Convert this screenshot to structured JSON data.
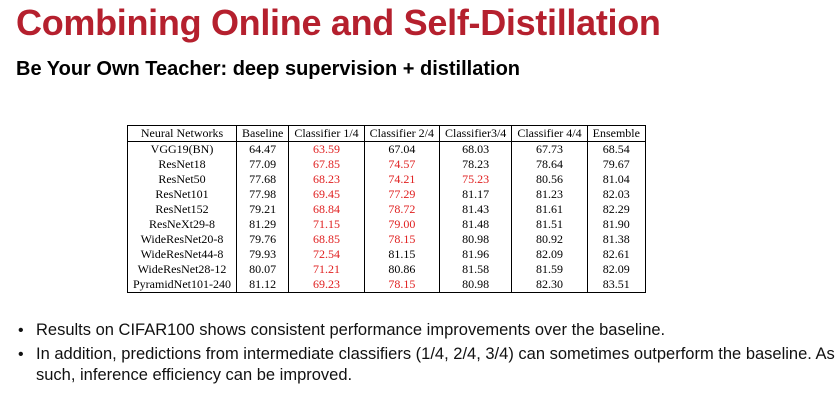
{
  "title": "Combining Online and Self-Distillation",
  "subtitle": "Be Your Own Teacher: deep supervision + distillation",
  "table": {
    "headers": [
      "Neural Networks",
      "Baseline",
      "Classifier 1/4",
      "Classifier 2/4",
      "Classifier3/4",
      "Classifier 4/4",
      "Ensemble"
    ],
    "rows": [
      {
        "name": "VGG19(BN)",
        "values": [
          "64.47",
          "63.59",
          "67.04",
          "68.03",
          "67.73",
          "68.54"
        ],
        "red": [
          false,
          true,
          false,
          false,
          false,
          false
        ]
      },
      {
        "name": "ResNet18",
        "values": [
          "77.09",
          "67.85",
          "74.57",
          "78.23",
          "78.64",
          "79.67"
        ],
        "red": [
          false,
          true,
          true,
          false,
          false,
          false
        ]
      },
      {
        "name": "ResNet50",
        "values": [
          "77.68",
          "68.23",
          "74.21",
          "75.23",
          "80.56",
          "81.04"
        ],
        "red": [
          false,
          true,
          true,
          true,
          false,
          false
        ]
      },
      {
        "name": "ResNet101",
        "values": [
          "77.98",
          "69.45",
          "77.29",
          "81.17",
          "81.23",
          "82.03"
        ],
        "red": [
          false,
          true,
          true,
          false,
          false,
          false
        ]
      },
      {
        "name": "ResNet152",
        "values": [
          "79.21",
          "68.84",
          "78.72",
          "81.43",
          "81.61",
          "82.29"
        ],
        "red": [
          false,
          true,
          true,
          false,
          false,
          false
        ]
      },
      {
        "name": "ResNeXt29-8",
        "values": [
          "81.29",
          "71.15",
          "79.00",
          "81.48",
          "81.51",
          "81.90"
        ],
        "red": [
          false,
          true,
          true,
          false,
          false,
          false
        ]
      },
      {
        "name": "WideResNet20-8",
        "values": [
          "79.76",
          "68.85",
          "78.15",
          "80.98",
          "80.92",
          "81.38"
        ],
        "red": [
          false,
          true,
          true,
          false,
          false,
          false
        ]
      },
      {
        "name": "WideResNet44-8",
        "values": [
          "79.93",
          "72.54",
          "81.15",
          "81.96",
          "82.09",
          "82.61"
        ],
        "red": [
          false,
          true,
          false,
          false,
          false,
          false
        ]
      },
      {
        "name": "WideResNet28-12",
        "values": [
          "80.07",
          "71.21",
          "80.86",
          "81.58",
          "81.59",
          "82.09"
        ],
        "red": [
          false,
          true,
          false,
          false,
          false,
          false
        ]
      },
      {
        "name": "PyramidNet101-240",
        "values": [
          "81.12",
          "69.23",
          "78.15",
          "80.98",
          "82.30",
          "83.51"
        ],
        "red": [
          false,
          true,
          true,
          false,
          false,
          false
        ]
      }
    ]
  },
  "bullets": [
    "Results on CIFAR100 shows consistent performance improvements over the baseline.",
    "In addition, predictions from intermediate classifiers (1/4, 2/4, 3/4) can sometimes outperform the baseline. As such, inference efficiency can be improved."
  ],
  "colors": {
    "title": "#b5202e",
    "highlight": "#e02020"
  },
  "bullet_glyph": "•"
}
